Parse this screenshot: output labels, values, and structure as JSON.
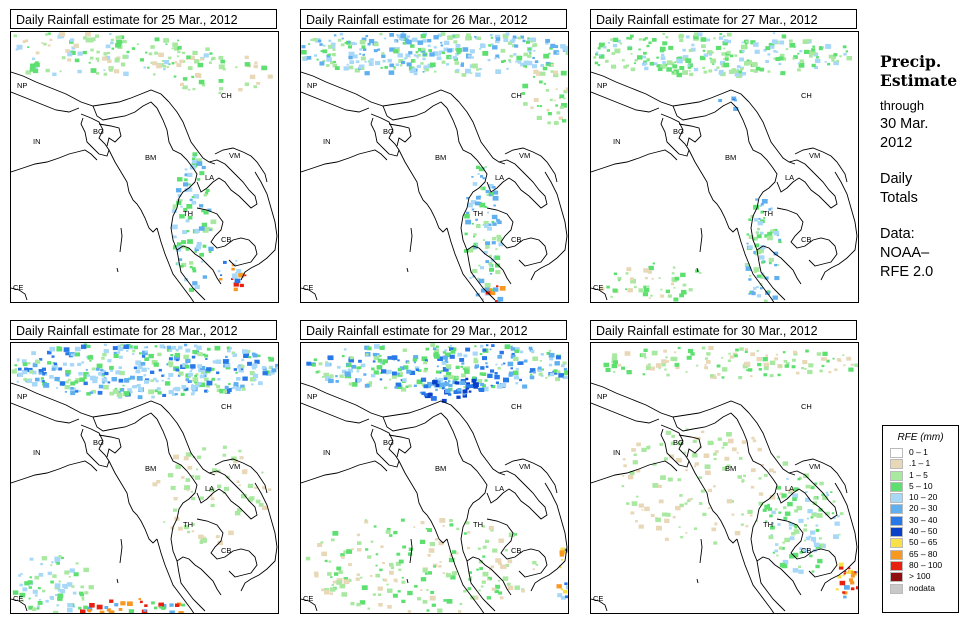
{
  "panels": [
    {
      "title": "Daily Rainfall estimate for  25 Mar., 2012",
      "pattern": "p25"
    },
    {
      "title": "Daily Rainfall estimate for  26 Mar., 2012",
      "pattern": "p26"
    },
    {
      "title": "Daily Rainfall estimate for  27 Mar., 2012",
      "pattern": "p27"
    },
    {
      "title": "Daily Rainfall estimate for  28 Mar., 2012",
      "pattern": "p28"
    },
    {
      "title": "Daily Rainfall estimate for  29 Mar., 2012",
      "pattern": "p29"
    },
    {
      "title": "Daily Rainfall estimate for  30 Mar., 2012",
      "pattern": "p30"
    }
  ],
  "country_labels": {
    "np": "NP",
    "ch": "CH",
    "in": "IN",
    "bg": "BG",
    "bm": "BM",
    "vm": "VM",
    "la": "LA",
    "th": "TH",
    "cb": "CB",
    "ce": "CE"
  },
  "side": {
    "heading_line1": "Precip.",
    "heading_line2": "Estimate",
    "through": "through",
    "date_line1": "30 Mar.",
    "date_line2": "2012",
    "totals_line1": "Daily",
    "totals_line2": "Totals",
    "data_line1": "Data:",
    "data_line2": "NOAA–",
    "data_line3": "RFE 2.0"
  },
  "legend": {
    "title": "RFE (mm)",
    "items": [
      {
        "label": "0 – 1",
        "color": "#ffffff"
      },
      {
        "label": ".1 – 1",
        "color": "#e8d8b8"
      },
      {
        "label": "1 – 5",
        "color": "#a8e8a0"
      },
      {
        "label": "5 – 10",
        "color": "#5ee070"
      },
      {
        "label": "10 – 20",
        "color": "#a8d8f8"
      },
      {
        "label": "20 – 30",
        "color": "#60b0f0"
      },
      {
        "label": "30 – 40",
        "color": "#2878e8"
      },
      {
        "label": "40 – 50",
        "color": "#0840c8"
      },
      {
        "label": "50 – 65",
        "color": "#f8e048"
      },
      {
        "label": "65 – 80",
        "color": "#f89820"
      },
      {
        "label": "80 – 100",
        "color": "#e82010"
      },
      {
        "label": "> 100",
        "color": "#901010"
      },
      {
        "label": "nodata",
        "color": "#c8c8c8"
      }
    ]
  }
}
